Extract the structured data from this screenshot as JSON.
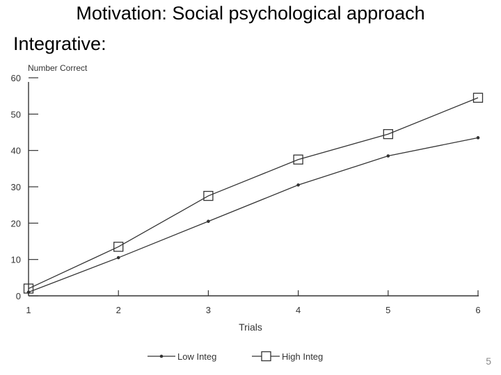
{
  "slide": {
    "title": "Motivation:  Social psychological approach",
    "subtitle": "Integrative:",
    "page_number": "5"
  },
  "chart_data": {
    "type": "line",
    "title": "",
    "xlabel": "Trials",
    "ylabel": "Number Correct",
    "x": [
      1,
      2,
      3,
      4,
      5,
      6
    ],
    "x_tick_labels": [
      "1",
      "2",
      "3",
      "4",
      "5",
      "6"
    ],
    "y_ticks": [
      0,
      10,
      20,
      30,
      40,
      50,
      60
    ],
    "ylim": [
      0,
      60
    ],
    "xlim": [
      1,
      6
    ],
    "grid": false,
    "legend_position": "bottom",
    "series": [
      {
        "name": "Low Integ",
        "marker": "dot",
        "values": [
          1,
          10.5,
          20.5,
          30.5,
          38.5,
          43.5
        ]
      },
      {
        "name": "High Integ",
        "marker": "square",
        "values": [
          2,
          13.5,
          27.5,
          37.5,
          44.5,
          54.5
        ]
      }
    ],
    "colors": {
      "line": "#333333",
      "text": "#333333"
    }
  }
}
